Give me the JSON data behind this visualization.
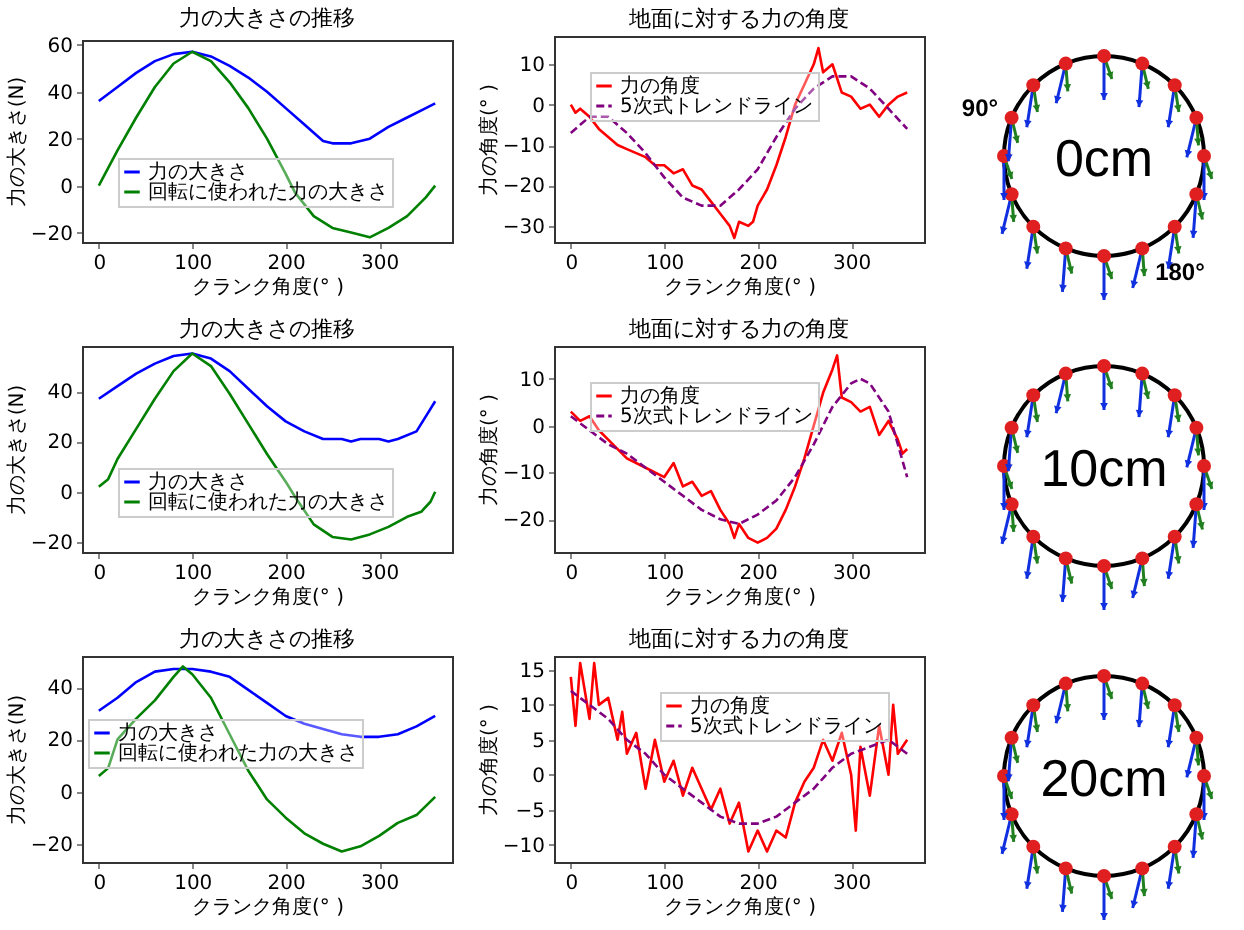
{
  "chart_data": [
    {
      "type": "line",
      "title": "力の大きさの推移",
      "xlabel": "クランク角度(° )",
      "ylabel": "力の大きさ(N)",
      "xlim": [
        -18,
        378
      ],
      "xticks": [
        0,
        100,
        200,
        300
      ],
      "ylim": [
        -24,
        62
      ],
      "yticks": [
        -20,
        0,
        20,
        40,
        60
      ],
      "legend": "lower left",
      "grid": false,
      "series": [
        {
          "name": "力の大きさ",
          "color": "#0000ff",
          "x": [
            0,
            20,
            40,
            60,
            80,
            100,
            120,
            140,
            160,
            180,
            200,
            220,
            240,
            250,
            270,
            290,
            310,
            330,
            350,
            360
          ],
          "values": [
            36,
            42,
            48,
            53,
            56,
            57,
            55,
            51,
            46,
            40,
            33,
            26,
            19,
            18,
            18,
            20,
            25,
            29,
            33,
            35
          ]
        },
        {
          "name": "回転に使われた力の大きさ",
          "color": "#008000",
          "x": [
            0,
            20,
            40,
            60,
            80,
            100,
            120,
            140,
            160,
            180,
            200,
            210,
            230,
            250,
            270,
            290,
            310,
            330,
            350,
            360
          ],
          "values": [
            0,
            15,
            29,
            42,
            52,
            57,
            53,
            44,
            33,
            20,
            5,
            -3,
            -13,
            -18,
            -20,
            -22,
            -18,
            -13,
            -5,
            0
          ]
        }
      ]
    },
    {
      "type": "line",
      "title": "地面に対する力の角度",
      "xlabel": "クランク角度(° )",
      "ylabel": "力の角度(° )",
      "xlim": [
        -18,
        378
      ],
      "xticks": [
        0,
        100,
        200,
        300
      ],
      "ylim": [
        -34,
        17
      ],
      "yticks": [
        -30,
        -20,
        -10,
        0,
        10
      ],
      "legend": "upper left",
      "grid": false,
      "series": [
        {
          "name": "力の角度",
          "color": "#ff0000",
          "line_style": "solid",
          "x": [
            0,
            5,
            10,
            20,
            30,
            40,
            50,
            60,
            70,
            80,
            90,
            100,
            110,
            120,
            130,
            140,
            150,
            160,
            170,
            175,
            180,
            190,
            195,
            200,
            210,
            220,
            230,
            240,
            250,
            260,
            265,
            270,
            280,
            290,
            300,
            310,
            320,
            330,
            340,
            350,
            360
          ],
          "values": [
            0,
            -2,
            -1,
            -3,
            -6,
            -8,
            -10,
            -11,
            -12,
            -13,
            -15,
            -15,
            -17,
            -16,
            -20,
            -21,
            -24,
            -27,
            -30,
            -33,
            -29,
            -30,
            -29,
            -25,
            -21,
            -15,
            -8,
            0,
            5,
            10,
            14,
            8,
            10,
            3,
            2,
            -1,
            0,
            -3,
            0,
            2,
            3
          ]
        },
        {
          "name": "5次式トレンドライン",
          "color": "#800080",
          "line_style": "dashed",
          "x": [
            0,
            20,
            40,
            60,
            80,
            100,
            120,
            140,
            160,
            180,
            200,
            220,
            240,
            260,
            280,
            300,
            320,
            340,
            360
          ],
          "values": [
            -7,
            -3,
            -3,
            -7,
            -12,
            -18,
            -23,
            -25,
            -25,
            -21,
            -16,
            -8,
            -1,
            4,
            7,
            7,
            4,
            -1,
            -6
          ]
        }
      ]
    },
    {
      "type": "other",
      "annotations": [
        "90°",
        "0cm",
        "180°"
      ]
    },
    {
      "type": "line",
      "title": "力の大きさの推移",
      "xlabel": "クランク角度(° )",
      "ylabel": "力の大きさ(N)",
      "xlim": [
        -18,
        378
      ],
      "xticks": [
        0,
        100,
        200,
        300
      ],
      "ylim": [
        -24,
        58
      ],
      "yticks": [
        -20,
        0,
        20,
        40
      ],
      "legend": "lower left",
      "grid": false,
      "series": [
        {
          "name": "力の大きさ",
          "color": "#0000ff",
          "x": [
            0,
            20,
            40,
            60,
            80,
            100,
            120,
            140,
            160,
            180,
            200,
            220,
            240,
            260,
            270,
            280,
            300,
            310,
            320,
            340,
            350,
            360
          ],
          "values": [
            37,
            42,
            47,
            51,
            54,
            55,
            53,
            48,
            41,
            34,
            28,
            24,
            21,
            21,
            20,
            21,
            21,
            20,
            21,
            24,
            30,
            36
          ]
        },
        {
          "name": "回転に使われた力の大きさ",
          "color": "#008000",
          "x": [
            0,
            10,
            20,
            40,
            60,
            80,
            100,
            120,
            140,
            160,
            180,
            200,
            210,
            230,
            250,
            270,
            290,
            310,
            330,
            345,
            355,
            360
          ],
          "values": [
            2,
            5,
            13,
            25,
            37,
            48,
            55,
            50,
            39,
            27,
            15,
            4,
            -2,
            -13,
            -18,
            -19,
            -17,
            -14,
            -10,
            -8,
            -4,
            0
          ]
        }
      ]
    },
    {
      "type": "line",
      "title": "地面に対する力の角度",
      "xlabel": "クランク角度(° )",
      "ylabel": "力の角度(° )",
      "xlim": [
        -18,
        378
      ],
      "xticks": [
        0,
        100,
        200,
        300
      ],
      "ylim": [
        -27,
        17
      ],
      "yticks": [
        -20,
        -10,
        0,
        10
      ],
      "legend": "upper left",
      "grid": false,
      "series": [
        {
          "name": "力の角度",
          "color": "#ff0000",
          "line_style": "solid",
          "x": [
            0,
            10,
            20,
            30,
            40,
            60,
            80,
            100,
            110,
            120,
            130,
            140,
            150,
            160,
            170,
            175,
            180,
            190,
            200,
            210,
            220,
            230,
            240,
            250,
            260,
            270,
            280,
            285,
            290,
            300,
            310,
            320,
            330,
            340,
            350,
            355,
            360
          ],
          "values": [
            3,
            1,
            2,
            -1,
            -3,
            -7,
            -9,
            -11,
            -8,
            -13,
            -12,
            -15,
            -14,
            -18,
            -21,
            -24,
            -21,
            -24,
            -25,
            -24,
            -22,
            -18,
            -13,
            -7,
            0,
            7,
            12,
            15,
            6,
            5,
            3,
            4,
            -2,
            1,
            -3,
            -6,
            -5
          ]
        },
        {
          "name": "5次式トレンドライン",
          "color": "#800080",
          "line_style": "dashed",
          "x": [
            0,
            20,
            40,
            60,
            80,
            100,
            120,
            140,
            160,
            180,
            200,
            220,
            240,
            260,
            280,
            300,
            310,
            320,
            340,
            360
          ],
          "values": [
            2,
            -1,
            -4,
            -6,
            -9,
            -12,
            -15,
            -18,
            -20,
            -21,
            -19,
            -16,
            -11,
            -4,
            4,
            9,
            10,
            9,
            3,
            -11
          ]
        }
      ]
    },
    {
      "type": "other",
      "annotations": [
        "10cm"
      ]
    },
    {
      "type": "line",
      "title": "力の大きさの推移",
      "xlabel": "クランク角度(° )",
      "ylabel": "力の大きさ(N)",
      "xlim": [
        -18,
        378
      ],
      "xticks": [
        0,
        100,
        200,
        300
      ],
      "ylim": [
        -27,
        52
      ],
      "yticks": [
        -20,
        0,
        20,
        40
      ],
      "legend": "center left",
      "grid": false,
      "series": [
        {
          "name": "力の大きさ",
          "color": "#0000ff",
          "x": [
            0,
            20,
            40,
            60,
            80,
            100,
            120,
            140,
            160,
            180,
            200,
            220,
            240,
            260,
            280,
            300,
            320,
            340,
            360
          ],
          "values": [
            31,
            36,
            42,
            46,
            47,
            47,
            46,
            44,
            39,
            34,
            29,
            26,
            24,
            22,
            21,
            21,
            22,
            25,
            29
          ]
        },
        {
          "name": "回転に使われた力の大きさ",
          "color": "#008000",
          "x": [
            0,
            10,
            20,
            40,
            60,
            80,
            90,
            100,
            120,
            140,
            160,
            180,
            200,
            220,
            240,
            260,
            280,
            300,
            320,
            340,
            360
          ],
          "values": [
            6,
            9,
            20,
            28,
            35,
            44,
            48,
            45,
            36,
            22,
            8,
            -3,
            -10,
            -16,
            -20,
            -23,
            -21,
            -17,
            -12,
            -9,
            -2
          ]
        }
      ]
    },
    {
      "type": "line",
      "title": "地面に対する力の角度",
      "xlabel": "クランク角度(° )",
      "ylabel": "力の角度(° )",
      "xlim": [
        -18,
        378
      ],
      "xticks": [
        0,
        100,
        200,
        300
      ],
      "ylim": [
        -12.5,
        17
      ],
      "yticks": [
        -10,
        -5,
        0,
        5,
        10,
        15
      ],
      "legend": "upper right",
      "grid": false,
      "series": [
        {
          "name": "力の角度",
          "color": "#ff0000",
          "line_style": "solid",
          "x": [
            0,
            5,
            10,
            20,
            25,
            30,
            40,
            50,
            55,
            60,
            70,
            80,
            90,
            100,
            110,
            120,
            130,
            140,
            150,
            160,
            170,
            180,
            190,
            200,
            210,
            220,
            230,
            240,
            250,
            260,
            270,
            280,
            290,
            300,
            305,
            310,
            320,
            330,
            340,
            345,
            350,
            360
          ],
          "values": [
            14,
            7,
            16,
            8,
            16,
            10,
            11,
            5,
            9,
            3,
            6,
            -2,
            5,
            -1,
            2,
            -3,
            1,
            -2,
            -5,
            -2,
            -7,
            -4,
            -11,
            -8,
            -11,
            -8,
            -9,
            -4,
            -1,
            1,
            5,
            2,
            6,
            0,
            -8,
            4,
            -3,
            7,
            0,
            10,
            3,
            5
          ]
        },
        {
          "name": "5次式トレンドライン",
          "color": "#800080",
          "line_style": "dashed",
          "x": [
            0,
            20,
            40,
            60,
            80,
            100,
            120,
            140,
            160,
            180,
            200,
            220,
            240,
            260,
            280,
            300,
            320,
            340,
            360
          ],
          "values": [
            12,
            10,
            8,
            5,
            3,
            0,
            -2,
            -4,
            -6,
            -7,
            -7,
            -6,
            -4,
            -2,
            1,
            3,
            4,
            5,
            3
          ]
        }
      ]
    },
    {
      "type": "other",
      "annotations": [
        "20cm"
      ]
    }
  ]
}
